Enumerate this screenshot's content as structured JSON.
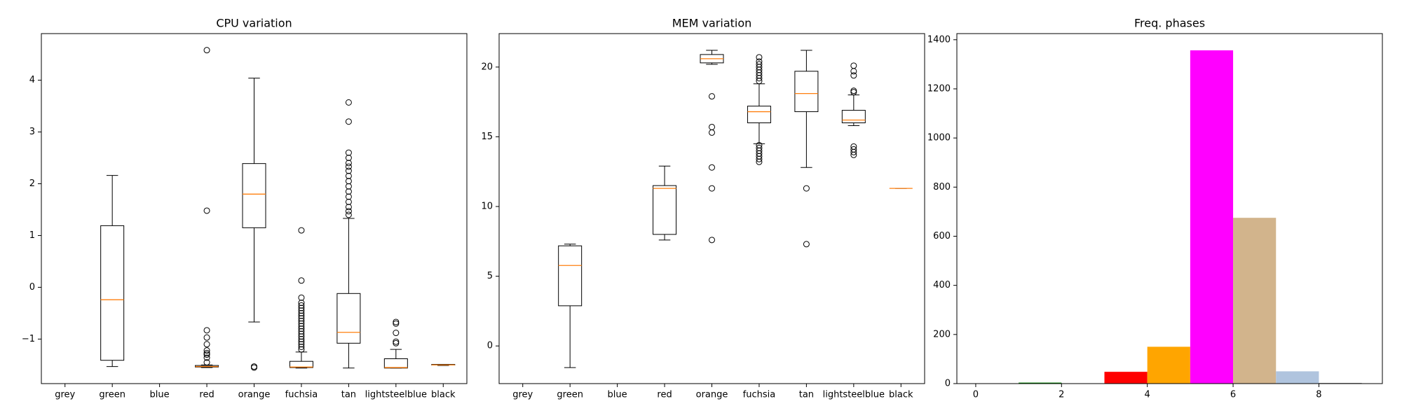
{
  "chart_data": [
    {
      "type": "boxplot",
      "title": "CPU variation",
      "categories": [
        "grey",
        "green",
        "blue",
        "red",
        "orange",
        "fuchsia",
        "tan",
        "lightsteelblue",
        "black"
      ],
      "boxes": [
        null,
        {
          "whislo": -1.53,
          "q1": -1.41,
          "med": -0.24,
          "q3": 1.19,
          "whishi": 2.16,
          "fliers": []
        },
        null,
        {
          "whislo": -1.55,
          "q1": -1.54,
          "med": -1.53,
          "q3": -1.51,
          "whishi": -1.5,
          "fliers": [
            4.58,
            1.48,
            -0.83,
            -0.97,
            -1.1,
            -1.22,
            -1.27,
            -1.3,
            -1.36,
            -1.45
          ]
        },
        {
          "whislo": -0.67,
          "q1": 1.15,
          "med": 1.8,
          "q3": 2.39,
          "whishi": 4.04,
          "fliers": [
            -1.53,
            -1.55
          ]
        },
        {
          "whislo": -1.56,
          "q1": -1.55,
          "med": -1.54,
          "q3": -1.43,
          "whishi": -1.25,
          "fliers": [
            1.1,
            0.13,
            -0.2,
            -0.3,
            -0.35,
            -0.4,
            -0.45,
            -0.5,
            -0.55,
            -0.6,
            -0.65,
            -0.7,
            -0.75,
            -0.8,
            -0.85,
            -0.9,
            -0.95,
            -1.0,
            -1.05,
            -1.1,
            -1.15,
            -1.2
          ]
        },
        {
          "whislo": -1.56,
          "q1": -1.08,
          "med": -0.87,
          "q3": -0.12,
          "whishi": 1.33,
          "fliers": [
            3.57,
            3.2,
            2.6,
            2.5,
            2.4,
            2.33,
            2.25,
            2.15,
            2.05,
            1.95,
            1.85,
            1.75,
            1.65,
            1.55,
            1.47,
            1.4
          ]
        },
        {
          "whislo": -1.56,
          "q1": -1.56,
          "med": -1.55,
          "q3": -1.38,
          "whishi": -1.2,
          "fliers": [
            -0.67,
            -0.7,
            -0.88,
            -1.05,
            -1.08
          ]
        },
        {
          "whislo": -1.51,
          "q1": -1.5,
          "med": -1.5,
          "q3": -1.49,
          "whishi": -1.49,
          "fliers": []
        }
      ],
      "median_color": "#ff7f0e",
      "ylim": [
        -1.86,
        4.9
      ],
      "yticks": [
        {
          "value": -1,
          "label": "−1"
        },
        0,
        1,
        2,
        3,
        4
      ]
    },
    {
      "type": "boxplot",
      "title": "MEM variation",
      "categories": [
        "grey",
        "green",
        "blue",
        "red",
        "orange",
        "fuchsia",
        "tan",
        "lightsteelblue",
        "black"
      ],
      "boxes": [
        null,
        {
          "whislo": -1.55,
          "q1": 2.88,
          "med": 5.77,
          "q3": 7.18,
          "whishi": 7.3,
          "fliers": []
        },
        null,
        {
          "whislo": 7.6,
          "q1": 8.0,
          "med": 11.3,
          "q3": 11.5,
          "whishi": 12.9,
          "fliers": []
        },
        {
          "whislo": 20.2,
          "q1": 20.3,
          "med": 20.6,
          "q3": 20.9,
          "whishi": 21.2,
          "fliers": [
            17.9,
            15.7,
            15.3,
            12.8,
            11.3,
            7.6
          ]
        },
        {
          "whislo": 14.5,
          "q1": 16.0,
          "med": 16.8,
          "q3": 17.2,
          "whishi": 18.8,
          "fliers": [
            19.0,
            19.2,
            19.4,
            19.6,
            19.8,
            20.0,
            20.2,
            20.4,
            20.7,
            14.4,
            14.2,
            14.0,
            13.8,
            13.6,
            13.4,
            13.2
          ]
        },
        {
          "whislo": 12.8,
          "q1": 16.8,
          "med": 18.1,
          "q3": 19.7,
          "whishi": 21.2,
          "fliers": [
            11.3,
            7.3
          ]
        },
        {
          "whislo": 15.8,
          "q1": 16.0,
          "med": 16.2,
          "q3": 16.9,
          "whishi": 18.0,
          "fliers": [
            20.1,
            19.7,
            19.4,
            18.3,
            18.2,
            14.3,
            14.1,
            13.9,
            13.7
          ]
        },
        {
          "whislo": 11.3,
          "q1": 11.3,
          "med": 11.3,
          "q3": 11.3,
          "whishi": 11.3,
          "fliers": []
        }
      ],
      "median_color": "#ff7f0e",
      "ylim": [
        -2.7,
        22.4
      ],
      "yticks": [
        0,
        5,
        10,
        15,
        20
      ]
    },
    {
      "type": "histogram",
      "title": "Freq. phases",
      "bins": [
        0,
        1,
        2,
        3,
        4,
        5,
        6,
        7,
        8,
        9
      ],
      "values": [
        0,
        4,
        0,
        48,
        150,
        1357,
        675,
        50,
        2
      ],
      "colors": [
        "grey",
        "green",
        "blue",
        "red",
        "orange",
        "fuchsia",
        "tan",
        "lightsteelblue",
        "black"
      ],
      "xlim": [
        -0.44,
        9.48
      ],
      "xticks": [
        0,
        2,
        4,
        6,
        8
      ],
      "ylim": [
        0,
        1425
      ],
      "yticks": [
        0,
        200,
        400,
        600,
        800,
        1000,
        1200,
        1400
      ]
    }
  ]
}
